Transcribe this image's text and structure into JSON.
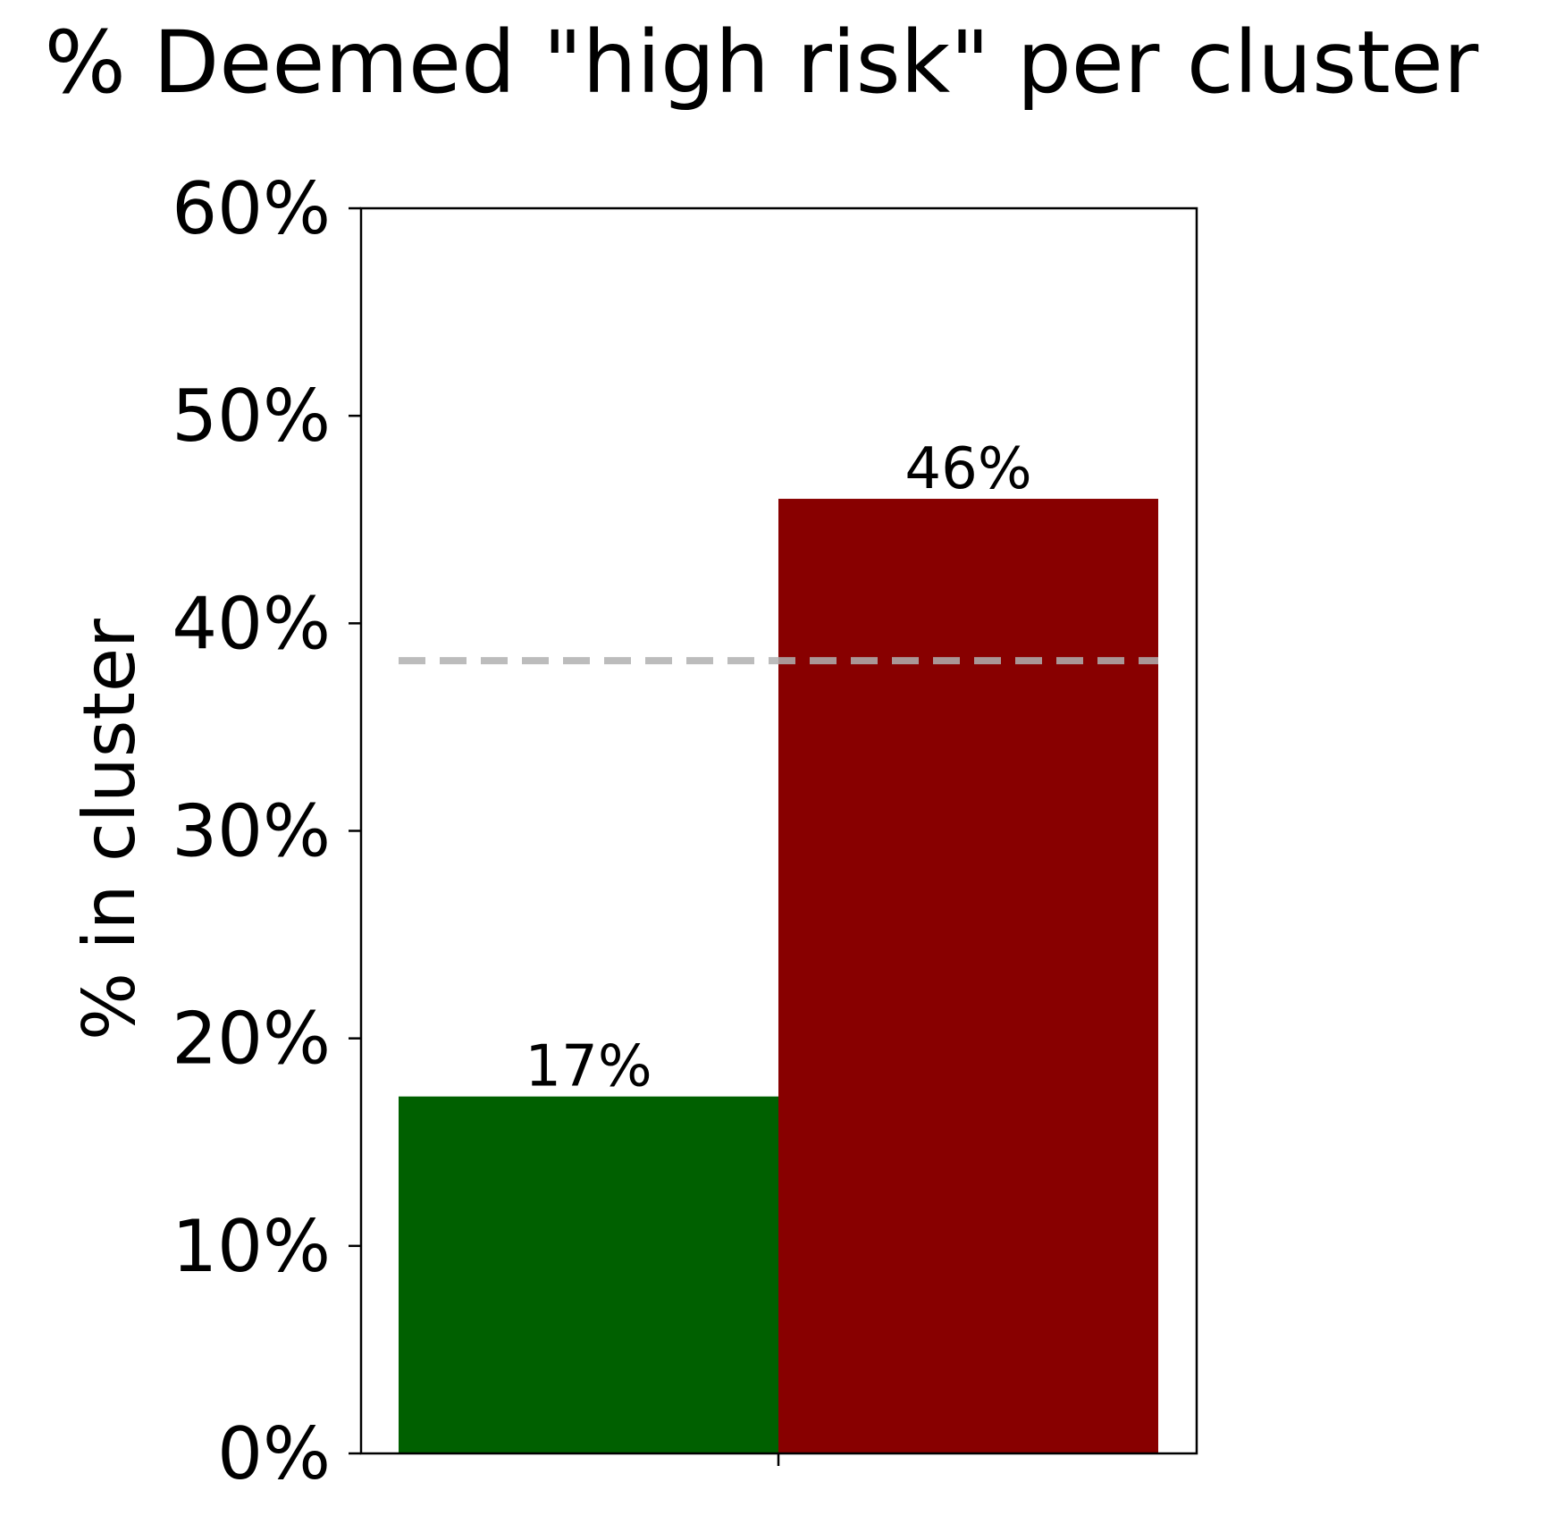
{
  "chart_data": {
    "type": "bar",
    "title": "% Deemed \"high risk\" per cluster",
    "xlabel": "",
    "ylabel": "% in cluster",
    "ylim": [
      0,
      60
    ],
    "yticks": [
      0,
      10,
      20,
      30,
      40,
      50,
      60
    ],
    "ytick_labels": [
      "0%",
      "10%",
      "20%",
      "30%",
      "40%",
      "50%",
      "60%"
    ],
    "categories": [
      "",
      ""
    ],
    "values": [
      17.2,
      46.0
    ],
    "data_labels": [
      "17%",
      "46%"
    ],
    "colors": [
      "#006000",
      "#880000"
    ],
    "reference_line": {
      "value": 38.2,
      "style": "dashed",
      "color": "#b0b0b0"
    },
    "grid": false,
    "legend": "none"
  }
}
